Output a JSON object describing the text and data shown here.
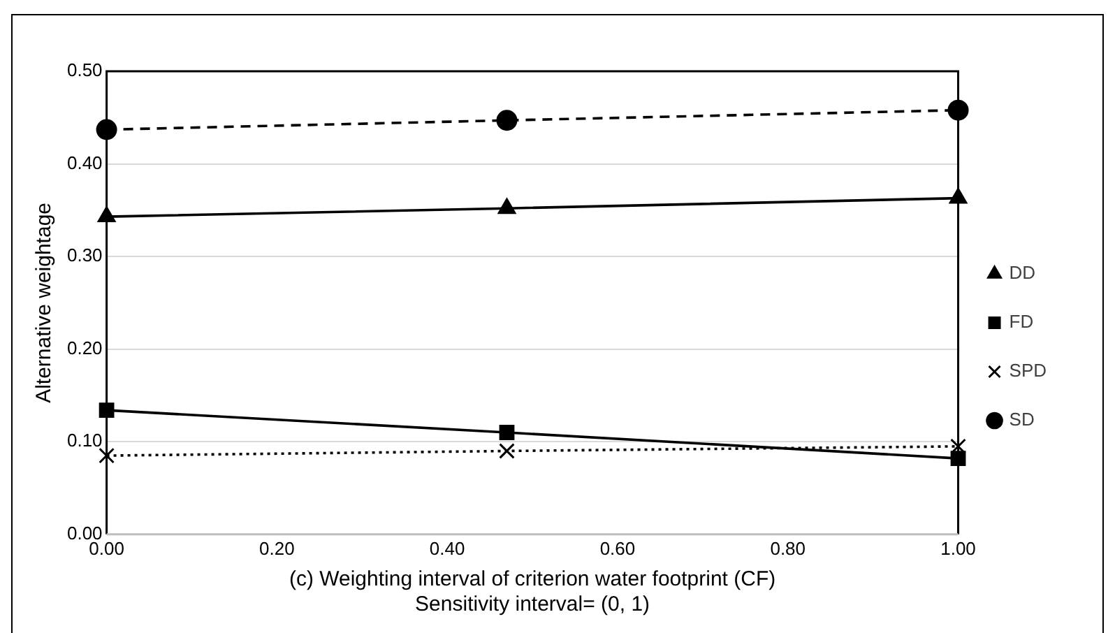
{
  "chart_data": {
    "type": "line",
    "xlabel": "(c) Weighting interval of criterion water footprint (CF)",
    "ylabel": "Alternative weightage",
    "annotations": [
      "Sensitivity interval= (0, 1)"
    ],
    "x": [
      0,
      0.47,
      1
    ],
    "xlim": [
      0,
      1
    ],
    "xticks": [
      {
        "value": 0,
        "label": "0.00"
      },
      {
        "value": 0.2,
        "label": "0.20"
      },
      {
        "value": 0.4,
        "label": "0.40"
      },
      {
        "value": 0.6,
        "label": "0.60"
      },
      {
        "value": 0.8,
        "label": "0.80"
      },
      {
        "value": 1,
        "label": "1.00"
      }
    ],
    "ylim": [
      0,
      0.5
    ],
    "yticks": [
      {
        "value": 0,
        "label": "0.00"
      },
      {
        "value": 0.1,
        "label": "0.10"
      },
      {
        "value": 0.2,
        "label": "0.20"
      },
      {
        "value": 0.3,
        "label": "0.30"
      },
      {
        "value": 0.4,
        "label": "0.40"
      },
      {
        "value": 0.5,
        "label": "0.50"
      }
    ],
    "grid": "y",
    "legend": "right",
    "series": [
      {
        "name": "DD",
        "color": "#000000",
        "values": [
          0.343,
          0.352,
          0.363
        ],
        "marker": "triangle",
        "line_style": "solid"
      },
      {
        "name": "FD",
        "color": "#000000",
        "values": [
          0.134,
          0.11,
          0.082
        ],
        "marker": "square",
        "line_style": "solid"
      },
      {
        "name": "SPD",
        "color": "#000000",
        "values": [
          0.085,
          0.09,
          0.095
        ],
        "marker": "cross",
        "line_style": "dotted"
      },
      {
        "name": "SD",
        "color": "#000000",
        "values": [
          0.437,
          0.447,
          0.458
        ],
        "marker": "circle",
        "line_style": "dashed"
      }
    ]
  }
}
